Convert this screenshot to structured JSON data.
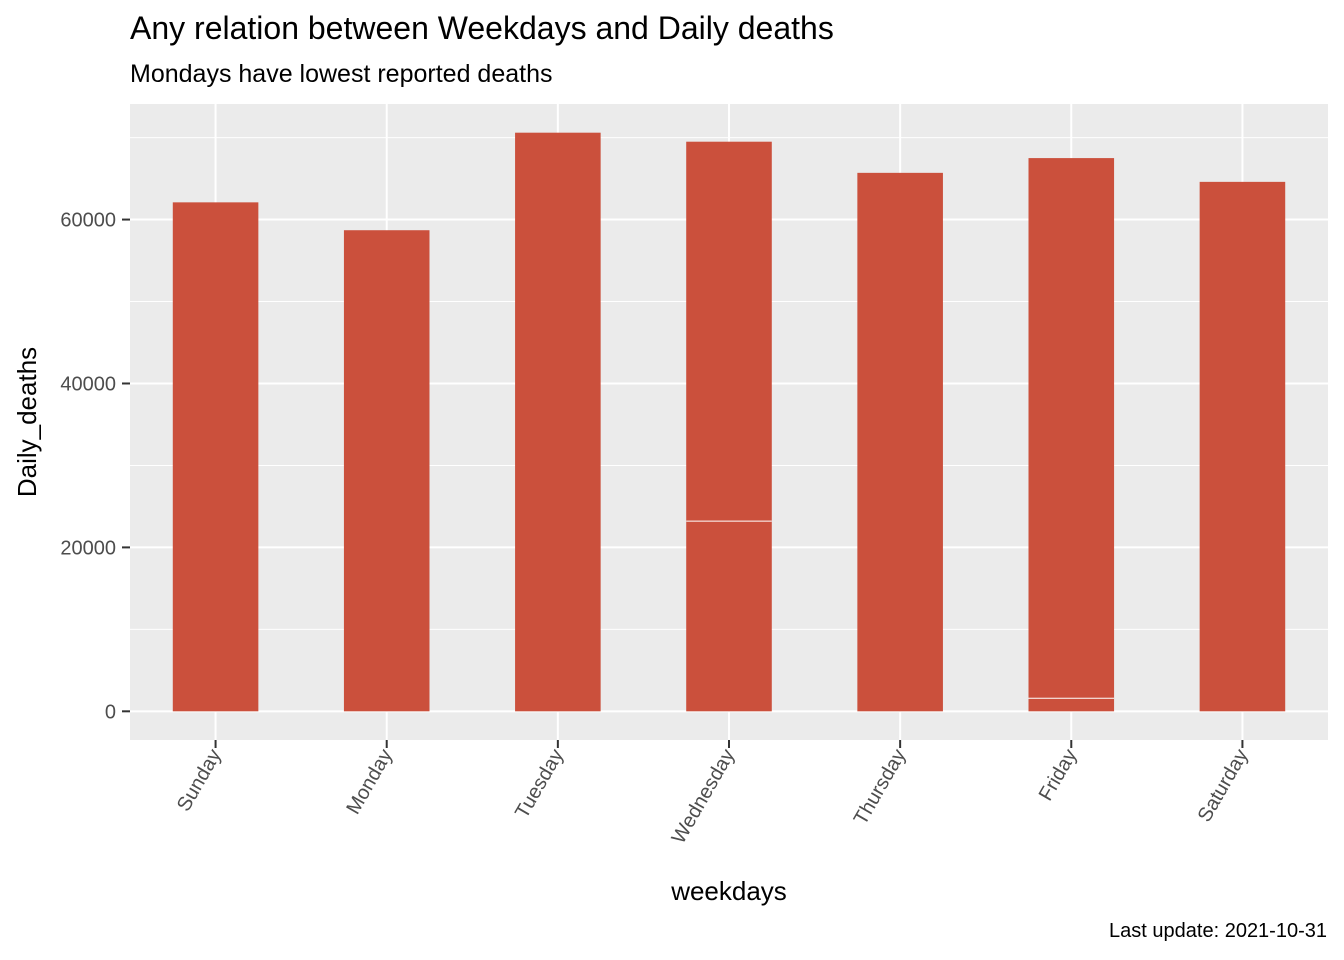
{
  "chart_data": {
    "type": "bar",
    "title": "Any relation between Weekdays and Daily deaths",
    "subtitle": "Mondays have lowest reported deaths",
    "caption": "Last update: 2021-10-31",
    "xlabel": "weekdays",
    "ylabel": "Daily_deaths",
    "categories": [
      "Sunday",
      "Monday",
      "Tuesday",
      "Wednesday",
      "Thursday",
      "Friday",
      "Saturday"
    ],
    "values": [
      62100,
      58700,
      70600,
      69500,
      65700,
      67500,
      64600
    ],
    "segment_breaks": [
      [],
      [],
      [],
      [
        23200
      ],
      [],
      [
        1600
      ],
      []
    ],
    "yticks": [
      0,
      20000,
      40000,
      60000
    ],
    "ylim": [
      -3500,
      74100
    ],
    "grid": true,
    "colors": {
      "bar": "#CB503C",
      "panel": "#EBEBEB",
      "grid": "#FFFFFF"
    }
  }
}
